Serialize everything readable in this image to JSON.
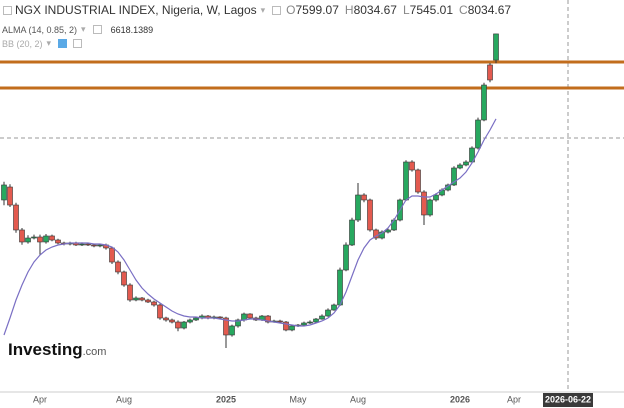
{
  "chart_data": {
    "type": "candlestick",
    "title": "NGX INDUSTRIAL INDEX, Nigeria, W, Lagos",
    "ohlc_labels": [
      "O",
      "H",
      "L",
      "C"
    ],
    "hidden_indicator": "BB (20, 2)",
    "logo": {
      "brand": "Investing",
      "suffix": ".com"
    },
    "categories": [
      null,
      null,
      null,
      null,
      null,
      null,
      "Apr",
      null,
      null,
      null,
      null,
      null,
      null,
      null,
      null,
      null,
      null,
      null,
      null,
      null,
      "Aug",
      null,
      null,
      null,
      null,
      null,
      null,
      null,
      null,
      null,
      null,
      null,
      null,
      null,
      null,
      null,
      null,
      "2025",
      null,
      null,
      null,
      null,
      null,
      null,
      null,
      null,
      null,
      null,
      null,
      "May",
      null,
      null,
      null,
      null,
      null,
      null,
      null,
      null,
      null,
      "Aug",
      null,
      null,
      null,
      null,
      null,
      null,
      null,
      null,
      null,
      null,
      null,
      null,
      null,
      null,
      null,
      null,
      "2026",
      null,
      null,
      null,
      null,
      null,
      null,
      null,
      null,
      "Apr",
      null,
      null,
      null,
      null,
      null,
      null,
      null,
      null,
      "2026-06-22",
      null,
      null,
      null,
      null,
      null,
      null,
      null,
      null
    ],
    "open": [
      5267,
      5483,
      5183,
      4767,
      4567,
      4633,
      4650,
      4567,
      4667,
      4600,
      4550,
      4533,
      4550,
      4517,
      4533,
      4517,
      4500,
      4517,
      4467,
      4233,
      4067,
      3850,
      3600,
      3633,
      3600,
      3567,
      3517,
      3300,
      3267,
      3233,
      3133,
      3233,
      3267,
      3300,
      3333,
      3300,
      3317,
      3300,
      3017,
      3167,
      3267,
      3367,
      3300,
      3267,
      3333,
      3233,
      3250,
      3233,
      3100,
      3167,
      3183,
      3217,
      3233,
      3283,
      3333,
      3433,
      3517,
      4100,
      4517,
      4933,
      5350,
      5267,
      4767,
      4633,
      4733,
      4767,
      4933,
      5267,
      5900,
      5767,
      5400,
      5017,
      5267,
      5350,
      5433,
      5517,
      5800,
      5850,
      5900,
      6133,
      6600,
      7517,
      7599.07,
      null,
      null,
      null,
      null,
      null,
      null,
      null,
      null,
      null,
      null,
      null,
      null,
      null,
      null,
      null,
      null,
      null,
      null,
      null,
      null
    ],
    "high": [
      5570,
      5530,
      5220,
      4800,
      4680,
      4690,
      4690,
      4700,
      4690,
      4620,
      4570,
      4570,
      4570,
      4560,
      4550,
      4540,
      4540,
      4540,
      4490,
      4260,
      4090,
      3880,
      3660,
      3650,
      3620,
      3590,
      3540,
      3320,
      3290,
      3260,
      3250,
      3290,
      3320,
      3360,
      3350,
      3340,
      3330,
      3320,
      3190,
      3290,
      3390,
      3380,
      3320,
      3350,
      3350,
      3270,
      3270,
      3250,
      3180,
      3200,
      3240,
      3260,
      3300,
      3360,
      3460,
      3540,
      4140,
      4560,
      4970,
      5550,
      5380,
      5290,
      4790,
      4760,
      4790,
      4960,
      5290,
      5930,
      5930,
      5790,
      5430,
      5290,
      5380,
      5460,
      5540,
      5830,
      5880,
      5930,
      6160,
      6640,
      7220,
      7550,
      8034.67,
      null,
      null,
      null,
      null,
      null,
      null,
      null,
      null,
      null,
      null,
      null,
      null,
      null,
      null,
      null,
      null,
      null,
      null,
      null,
      null
    ],
    "low": [
      5180,
      5150,
      4720,
      4520,
      4540,
      4610,
      4350,
      4540,
      4580,
      4530,
      4510,
      4510,
      4500,
      4500,
      4500,
      4480,
      4480,
      4440,
      4200,
      4030,
      3820,
      3570,
      3580,
      3580,
      3550,
      3490,
      3270,
      3240,
      3210,
      3080,
      3110,
      3210,
      3250,
      3280,
      3280,
      3280,
      3280,
      2800,
      2990,
      3140,
      3240,
      3280,
      3250,
      3250,
      3210,
      3220,
      3220,
      3080,
      3080,
      3150,
      3170,
      3200,
      3220,
      3270,
      3320,
      3420,
      3500,
      4080,
      4500,
      4900,
      5230,
      4740,
      4600,
      4610,
      4710,
      4750,
      4910,
      5250,
      5740,
      5370,
      4850,
      4990,
      5240,
      5330,
      5410,
      5500,
      5780,
      5830,
      5880,
      6110,
      6580,
      7230,
      7545.01,
      null,
      null,
      null,
      null,
      null,
      null,
      null,
      null,
      null,
      null,
      null,
      null,
      null,
      null,
      null,
      null,
      null,
      null,
      null,
      null
    ],
    "close": [
      5517,
      5183,
      4767,
      4567,
      4633,
      4650,
      4567,
      4667,
      4600,
      4550,
      4533,
      4550,
      4517,
      4533,
      4517,
      4500,
      4517,
      4467,
      4233,
      4067,
      3850,
      3600,
      3633,
      3600,
      3567,
      3517,
      3300,
      3267,
      3233,
      3133,
      3233,
      3267,
      3300,
      3333,
      3300,
      3317,
      3300,
      3017,
      3167,
      3267,
      3367,
      3300,
      3267,
      3333,
      3233,
      3250,
      3233,
      3100,
      3167,
      3183,
      3217,
      3233,
      3283,
      3333,
      3433,
      3517,
      4100,
      4517,
      4933,
      5350,
      5267,
      4767,
      4633,
      4733,
      4767,
      4933,
      5267,
      5900,
      5767,
      5400,
      5017,
      5267,
      5350,
      5433,
      5517,
      5800,
      5850,
      5900,
      6133,
      6600,
      7183,
      7267,
      8034.67,
      null,
      null,
      null,
      null,
      null,
      null,
      null,
      null,
      null,
      null,
      null,
      null,
      null,
      null,
      null,
      null,
      null,
      null,
      null,
      null
    ],
    "up_color": "#27a85f",
    "down_color": "#e35a4f",
    "overlays": [
      {
        "name": "ALMA (14, 0.85, 2)",
        "color": "#7a6fc4",
        "values": [
          3017,
          3300,
          3600,
          3850,
          4067,
          4233,
          4350,
          4433,
          4483,
          4517,
          4533,
          4550,
          4550,
          4550,
          4550,
          4533,
          4533,
          4517,
          4483,
          4400,
          4267,
          4100,
          3933,
          3800,
          3700,
          3617,
          3550,
          3483,
          3417,
          3367,
          3333,
          3317,
          3317,
          3300,
          3300,
          3300,
          3283,
          3267,
          3250,
          3250,
          3267,
          3283,
          3283,
          3267,
          3250,
          3233,
          3217,
          3200,
          3183,
          3167,
          3167,
          3183,
          3217,
          3250,
          3300,
          3383,
          3517,
          3733,
          4000,
          4267,
          4467,
          4600,
          4667,
          4717,
          4800,
          4933,
          5100,
          5267,
          5333,
          5333,
          5317,
          5317,
          5367,
          5433,
          5500,
          5567,
          5633,
          5733,
          5883,
          6067,
          6267,
          6433,
          6618.1389,
          null,
          null,
          null,
          null,
          null,
          null,
          null,
          null,
          null,
          null,
          null,
          null,
          null,
          null,
          null,
          null,
          null,
          null,
          null,
          null
        ]
      }
    ],
    "levels": [
      7567,
      7133
    ],
    "level_color": "#c26d1d",
    "crosshair_y": 6300,
    "ylim": [
      2100,
      8600
    ]
  }
}
